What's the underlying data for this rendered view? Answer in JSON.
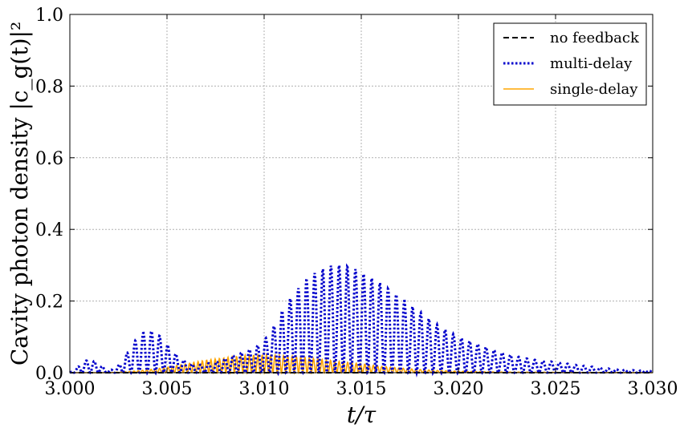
{
  "chart_data": {
    "type": "line",
    "xlabel": "t/τ",
    "ylabel": "Cavity photon density |c_g(t)|²",
    "xlim": [
      3.0,
      3.03
    ],
    "ylim": [
      0.0,
      1.0
    ],
    "grid": true,
    "legend_position": "top-right",
    "x_ticks": [
      "3.000",
      "3.005",
      "3.010",
      "3.015",
      "3.020",
      "3.025",
      "3.030"
    ],
    "y_ticks": [
      "0.0",
      "0.2",
      "0.4",
      "0.6",
      "0.8",
      "1.0"
    ],
    "series": [
      {
        "name": "no feedback",
        "style": "dashed",
        "color": "#000000",
        "x": [
          3.0,
          3.03
        ],
        "y": [
          0.0,
          0.0
        ]
      },
      {
        "name": "multi-delay",
        "style": "dotted",
        "color": "#0000cc",
        "oscillating": true,
        "envelope": {
          "x": [
            3.0,
            3.0005,
            3.001,
            3.0015,
            3.002,
            3.0025,
            3.003,
            3.0035,
            3.004,
            3.0045,
            3.005,
            3.0055,
            3.006,
            3.0065,
            3.007,
            3.0075,
            3.008,
            3.0085,
            3.009,
            3.0095,
            3.01,
            3.0105,
            3.011,
            3.0115,
            3.012,
            3.0125,
            3.013,
            3.0135,
            3.014,
            3.0145,
            3.015,
            3.0155,
            3.016,
            3.0165,
            3.017,
            3.0175,
            3.018,
            3.0185,
            3.019,
            3.0195,
            3.02,
            3.021,
            3.022,
            3.023,
            3.024,
            3.025,
            3.026,
            3.027,
            3.028,
            3.029,
            3.03
          ],
          "y": [
            0.0,
            0.02,
            0.04,
            0.025,
            0.005,
            0.02,
            0.06,
            0.1,
            0.12,
            0.11,
            0.08,
            0.05,
            0.03,
            0.02,
            0.025,
            0.03,
            0.04,
            0.05,
            0.06,
            0.07,
            0.09,
            0.13,
            0.18,
            0.22,
            0.25,
            0.275,
            0.29,
            0.3,
            0.3,
            0.295,
            0.28,
            0.265,
            0.25,
            0.23,
            0.21,
            0.19,
            0.17,
            0.15,
            0.13,
            0.115,
            0.1,
            0.08,
            0.06,
            0.045,
            0.035,
            0.03,
            0.022,
            0.016,
            0.01,
            0.007,
            0.005
          ]
        }
      },
      {
        "name": "single-delay",
        "style": "solid",
        "color": "#ffa500",
        "oscillating": true,
        "envelope": {
          "x": [
            3.0,
            3.002,
            3.003,
            3.004,
            3.005,
            3.006,
            3.007,
            3.008,
            3.009,
            3.01,
            3.011,
            3.012,
            3.013,
            3.014,
            3.015,
            3.016,
            3.017,
            3.018,
            3.019,
            3.02,
            3.022,
            3.025,
            3.03
          ],
          "y": [
            0.0,
            0.0,
            0.003,
            0.008,
            0.015,
            0.025,
            0.035,
            0.042,
            0.048,
            0.05,
            0.048,
            0.043,
            0.037,
            0.031,
            0.025,
            0.018,
            0.013,
            0.009,
            0.006,
            0.004,
            0.002,
            0.001,
            0.0
          ]
        }
      }
    ]
  }
}
